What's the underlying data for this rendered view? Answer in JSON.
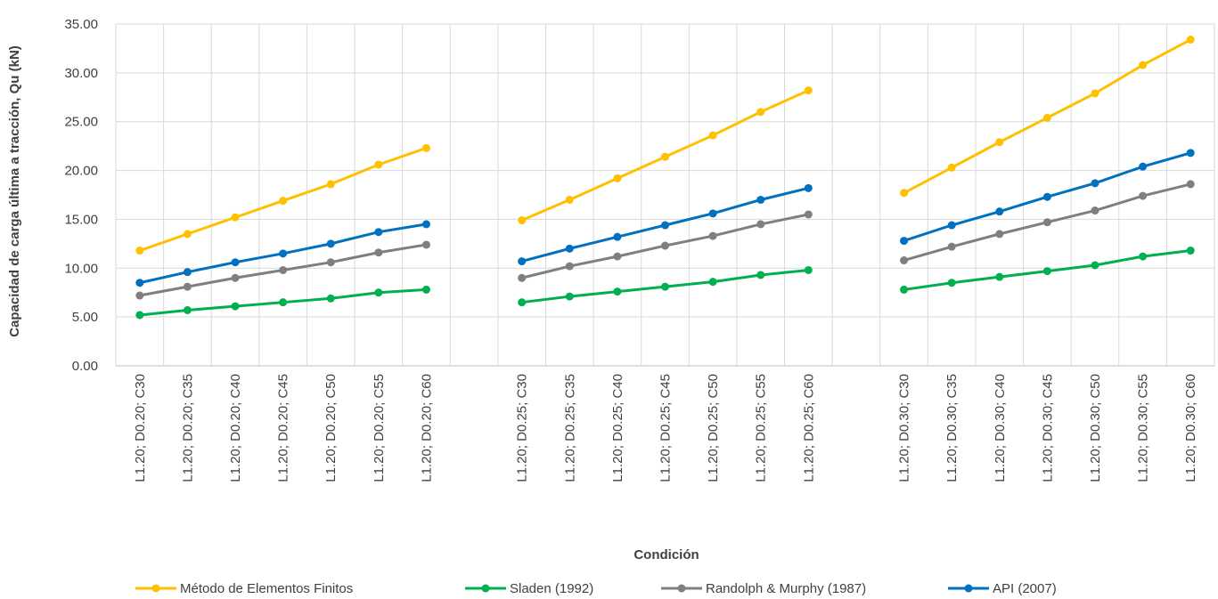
{
  "chart_data": {
    "type": "line",
    "title": "",
    "xlabel": "Condición",
    "ylabel": "Capacidad de carga última a tracción, Qu (kN)",
    "ylim": [
      0,
      35
    ],
    "yticks": [
      "0.00",
      "5.00",
      "10.00",
      "15.00",
      "20.00",
      "25.00",
      "30.00",
      "35.00"
    ],
    "grid": true,
    "legend_position": "bottom",
    "categories": [
      "L1.20; D0.20; C30",
      "L1.20; D0.20; C35",
      "L1.20; D0.20; C40",
      "L1.20; D0.20; C45",
      "L1.20; D0.20; C50",
      "L1.20; D0.20; C55",
      "L1.20; D0.20; C60",
      "",
      "L1.20; D0.25; C30",
      "L1.20; D0.25; C35",
      "L1.20; D0.25; C40",
      "L1.20; D0.25; C45",
      "L1.20; D0.25; C50",
      "L1.20; D0.25; C55",
      "L1.20; D0.25; C60",
      "",
      "L1.20; D0.30; C30",
      "L1.20; D0.30; C35",
      "L1.20; D0.30; C40",
      "L1.20; D0.30; C45",
      "L1.20; D0.30; C50",
      "L1.20; D0.30; C55",
      "L1.20; D0.30; C60"
    ],
    "series": [
      {
        "name": "Método de Elementos Finitos",
        "color": "#FFC000",
        "values": [
          11.8,
          13.5,
          15.2,
          16.9,
          18.6,
          20.6,
          22.3,
          null,
          14.9,
          17.0,
          19.2,
          21.4,
          23.6,
          26.0,
          28.2,
          null,
          17.7,
          20.3,
          22.9,
          25.4,
          27.9,
          30.8,
          33.4
        ]
      },
      {
        "name": "Sladen (1992)",
        "color": "#00B050",
        "values": [
          5.2,
          5.7,
          6.1,
          6.5,
          6.9,
          7.5,
          7.8,
          null,
          6.5,
          7.1,
          7.6,
          8.1,
          8.6,
          9.3,
          9.8,
          null,
          7.8,
          8.5,
          9.1,
          9.7,
          10.3,
          11.2,
          11.8
        ]
      },
      {
        "name": "Randolph & Murphy (1987)",
        "color": "#7F7F7F",
        "values": [
          7.2,
          8.1,
          9.0,
          9.8,
          10.6,
          11.6,
          12.4,
          null,
          9.0,
          10.2,
          11.2,
          12.3,
          13.3,
          14.5,
          15.5,
          null,
          10.8,
          12.2,
          13.5,
          14.7,
          15.9,
          17.4,
          18.6
        ]
      },
      {
        "name": "API (2007)",
        "color": "#0070C0",
        "values": [
          8.5,
          9.6,
          10.6,
          11.5,
          12.5,
          13.7,
          14.5,
          null,
          10.7,
          12.0,
          13.2,
          14.4,
          15.6,
          17.0,
          18.2,
          null,
          12.8,
          14.4,
          15.8,
          17.3,
          18.7,
          20.4,
          21.8
        ]
      }
    ]
  }
}
